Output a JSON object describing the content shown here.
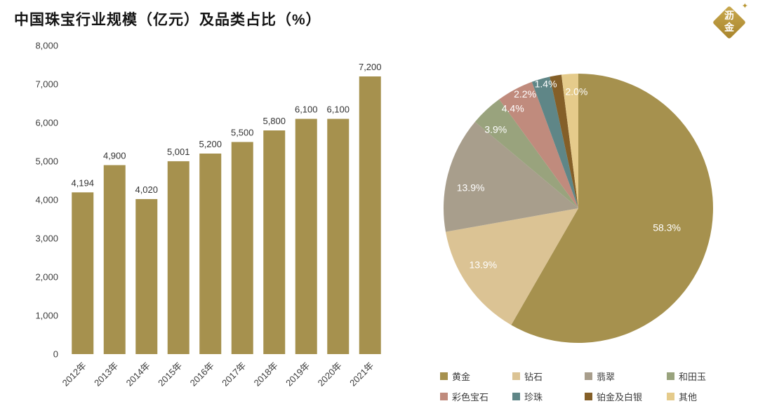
{
  "page": {
    "title": "中国珠宝行业规模（亿元）及品类占比（%）",
    "logo_line1": "沥",
    "logo_line2": "金"
  },
  "chart_data": [
    {
      "type": "bar",
      "title": "中国珠宝行业规模（亿元）",
      "xlabel": "",
      "ylabel": "",
      "categories": [
        "2012年",
        "2013年",
        "2014年",
        "2015年",
        "2016年",
        "2017年",
        "2018年",
        "2019年",
        "2020年",
        "2021年"
      ],
      "values": [
        4194,
        4900,
        4020,
        5001,
        5200,
        5500,
        5800,
        6100,
        6100,
        7200
      ],
      "value_labels": [
        "4,194",
        "4,900",
        "4,020",
        "5,001",
        "5,200",
        "5,500",
        "5,800",
        "6,100",
        "6,100",
        "7,200"
      ],
      "ylim": [
        0,
        8000
      ],
      "ytick_step": 1000,
      "ytick_labels": [
        "0",
        "1,000",
        "2,000",
        "3,000",
        "4,000",
        "5,000",
        "6,000",
        "7,000",
        "8,000"
      ],
      "grid": false,
      "bar_color": "#A6914E"
    },
    {
      "type": "pie",
      "title": "品类占比（%）",
      "direction": "clockwise",
      "start_angle": "top",
      "legend_position": "bottom",
      "slices": [
        {
          "label": "黄金",
          "value": 58.3,
          "pct_label": "58.3%",
          "color": "#A6914E"
        },
        {
          "label": "钻石",
          "value": 13.9,
          "pct_label": "13.9%",
          "color": "#DBC394"
        },
        {
          "label": "翡翠",
          "value": 13.9,
          "pct_label": "13.9%",
          "color": "#A89E8C"
        },
        {
          "label": "和田玉",
          "value": 3.9,
          "pct_label": "3.9%",
          "color": "#99A37D"
        },
        {
          "label": "彩色宝石",
          "value": 4.4,
          "pct_label": "4.4%",
          "color": "#C08B7D"
        },
        {
          "label": "珍珠",
          "value": 2.2,
          "pct_label": "2.2%",
          "color": "#5F8687"
        },
        {
          "label": "铂金及白银",
          "value": 1.4,
          "pct_label": "1.4%",
          "color": "#845F28"
        },
        {
          "label": "其他",
          "value": 2.0,
          "pct_label": "2.0%",
          "color": "#E5CB8B"
        }
      ]
    }
  ]
}
